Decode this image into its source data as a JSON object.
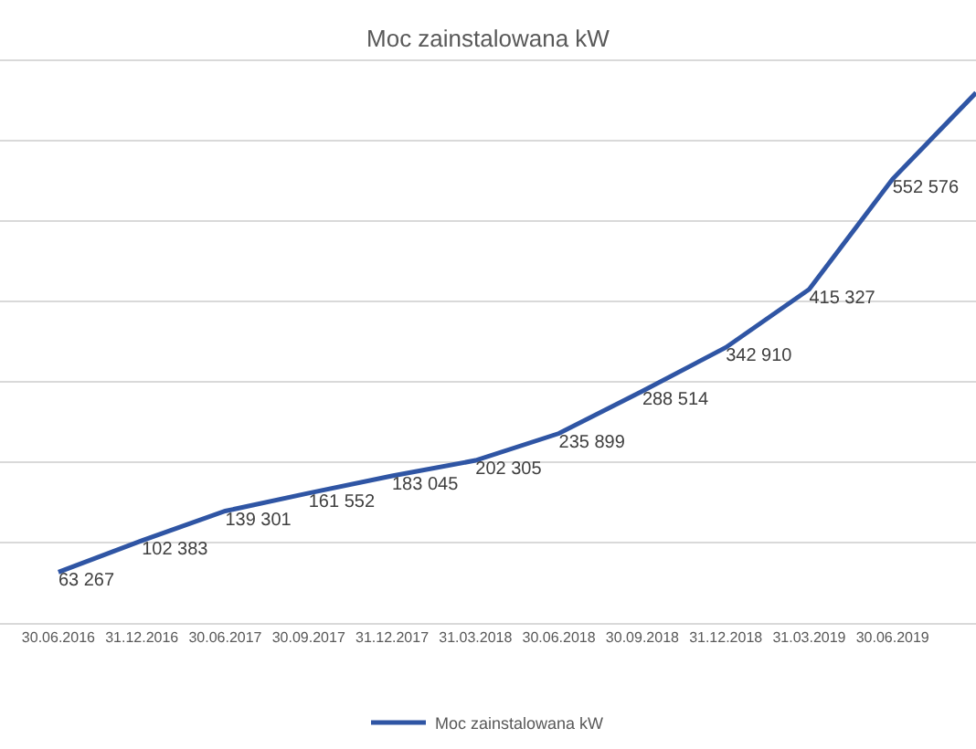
{
  "chart_data": {
    "type": "line",
    "title": "Moc zainstalowana kW",
    "categories": [
      "30.06.2016",
      "31.12.2016",
      "30.06.2017",
      "30.09.2017",
      "31.12.2017",
      "31.03.2018",
      "30.06.2018",
      "30.09.2018",
      "31.12.2018",
      "31.03.2019",
      "30.06.2019",
      null
    ],
    "series": [
      {
        "name": "Moc zainstalowana kW",
        "color": "#2f55a4",
        "values": [
          63267,
          102383,
          139301,
          161552,
          183045,
          202305,
          235899,
          288514,
          342910,
          415327,
          552576,
          660000
        ],
        "value_labels": [
          "63 267",
          "102 383",
          "139 301",
          "161 552",
          "183 045",
          "202 305",
          "235 899",
          "288 514",
          "342 910",
          "415 327",
          "552 576",
          null
        ]
      }
    ],
    "ylim": [
      0,
      705000
    ],
    "yticks": [
      {
        "value": 0,
        "label": null
      },
      {
        "value": 100000,
        "label": null
      },
      {
        "value": 200000,
        "label": null
      },
      {
        "value": 300000,
        "label": null
      },
      {
        "value": 400000,
        "label": null
      },
      {
        "value": 500000,
        "label": null
      },
      {
        "value": 600000,
        "label": null
      },
      {
        "value": 700000,
        "label": null
      }
    ],
    "tick_labels": "x",
    "grid": "y",
    "legend": "bottom",
    "marker": "none",
    "line_style": "solid"
  }
}
